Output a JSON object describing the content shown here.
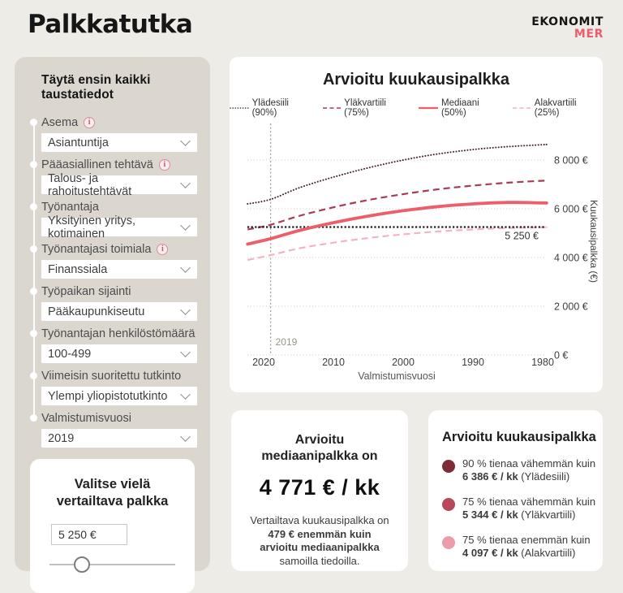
{
  "header": {
    "title": "Palkkatutka",
    "logo_top": "EKONOMIT",
    "logo_bottom": "MER"
  },
  "sidebar": {
    "title": "Täytä ensin kaikki taustatiedot",
    "fields": [
      {
        "key": "asema",
        "label": "Asema",
        "info": true,
        "value": "Asiantuntija"
      },
      {
        "key": "paaasiallinen-tehtava",
        "label": "Pääasiallinen tehtävä",
        "info": true,
        "value": "Talous- ja rahoitustehtävät"
      },
      {
        "key": "tyonantaja",
        "label": "Työnantaja",
        "info": false,
        "value": "Yksityinen yritys, kotimainen"
      },
      {
        "key": "tyonantajasi-toimiala",
        "label": "Työnantajasi toimiala",
        "info": true,
        "value": "Finanssiala"
      },
      {
        "key": "tyopaikan-sijainti",
        "label": "Työpaikan sijainti",
        "info": false,
        "value": "Pääkaupunkiseutu"
      },
      {
        "key": "tyonantajan-henkilostomaara",
        "label": "Työnantajan henkilöstömäärä",
        "info": false,
        "value": "100-499"
      },
      {
        "key": "viimeisin-suoritettu-tutkinto",
        "label": "Viimeisin suoritettu tutkinto",
        "info": false,
        "value": "Ylempi yliopistotutkinto"
      },
      {
        "key": "valmistumisvuosi",
        "label": "Valmistumisvuosi",
        "info": false,
        "value": "2019"
      }
    ],
    "salary_card": {
      "title_line1": "Valitse vielä",
      "title_line2": "vertailtava palkka",
      "input_value": "5 250 €",
      "slider_position_pct": 26
    }
  },
  "chart_data": {
    "type": "line",
    "title": "Arvioitu kuukausipalkka",
    "xlabel": "Valmistumisvuosi",
    "ylabel": "Kuukausipalkka (€)",
    "x_axis_reversed": true,
    "x_ticks": [
      2020,
      2010,
      2000,
      1990,
      1980
    ],
    "y_ticks": [
      {
        "value": 0,
        "label": "0 €"
      },
      {
        "value": 2000,
        "label": "2 000 €"
      },
      {
        "value": 4000,
        "label": "4 000 €"
      },
      {
        "value": 6000,
        "label": "6 000 €"
      },
      {
        "value": 8000,
        "label": "8 000 €"
      }
    ],
    "ylim": [
      0,
      9000
    ],
    "grid": "horizontal-dotted",
    "reference_line": {
      "value": 5250,
      "label": "5 250 €"
    },
    "vertical_marker": {
      "year": 2019,
      "label": "2019"
    },
    "x": [
      2022.3,
      2019,
      2015,
      2010,
      2005,
      2000,
      1995,
      1990,
      1985,
      1980,
      1979.5
    ],
    "series": [
      {
        "name": "Ylädesiili (90%)",
        "style": "dotted",
        "color": "#46242a",
        "values": [
          6200,
          6386,
          6850,
          7300,
          7680,
          8000,
          8250,
          8430,
          8550,
          8630,
          8640
        ]
      },
      {
        "name": "Yläkvartiili (75%)",
        "style": "dashed",
        "color": "#a63d52",
        "values": [
          5150,
          5344,
          5700,
          6060,
          6360,
          6600,
          6800,
          6950,
          7070,
          7150,
          7155
        ]
      },
      {
        "name": "Mediaani (50%)",
        "style": "solid",
        "color": "#ee5d6c",
        "values": [
          4550,
          4771,
          5100,
          5430,
          5700,
          5920,
          6090,
          6200,
          6260,
          6240,
          6235
        ]
      },
      {
        "name": "Alakvartiili (25%)",
        "style": "dashed",
        "color": "#f3b4c0",
        "values": [
          3900,
          4097,
          4370,
          4610,
          4800,
          4950,
          5070,
          5150,
          5210,
          5240,
          5240
        ]
      }
    ]
  },
  "median_card": {
    "title_line1": "Arvioitu",
    "title_line2": "mediaanipalkka on",
    "value": "4 771 € / kk",
    "note_lines": [
      {
        "text": "Vertailtava kuukausipalkka on",
        "bold": false
      },
      {
        "text": "479 € enemmän kuin",
        "bold": true
      },
      {
        "text": "arvioitu mediaanipalkka",
        "bold": true
      },
      {
        "text": "samoilla tiedoilla.",
        "bold": false
      }
    ]
  },
  "summary_card": {
    "title": "Arvioitu kuukausipalkka",
    "items": [
      {
        "line1": "90 % tienaa vähemmän kuin",
        "value": "6 386 € / kk",
        "suffix": "(Ylädesiili)",
        "color": "#7d2b36"
      },
      {
        "line1": "75 % tienaa vähemmän kuin",
        "value": "5 344 € / kk",
        "suffix": "(Yläkvartiili)",
        "color": "#b9475a"
      },
      {
        "line1": "75 % tienaa enemmän kuin",
        "value": "4 097 € / kk",
        "suffix": "(Alakvartiili)",
        "color": "#eb9dab"
      }
    ]
  },
  "colors": {
    "background": "#eeece7",
    "panel": "#dbd7cf",
    "card": "#ffffff",
    "accent_red": "#e95d6d"
  }
}
